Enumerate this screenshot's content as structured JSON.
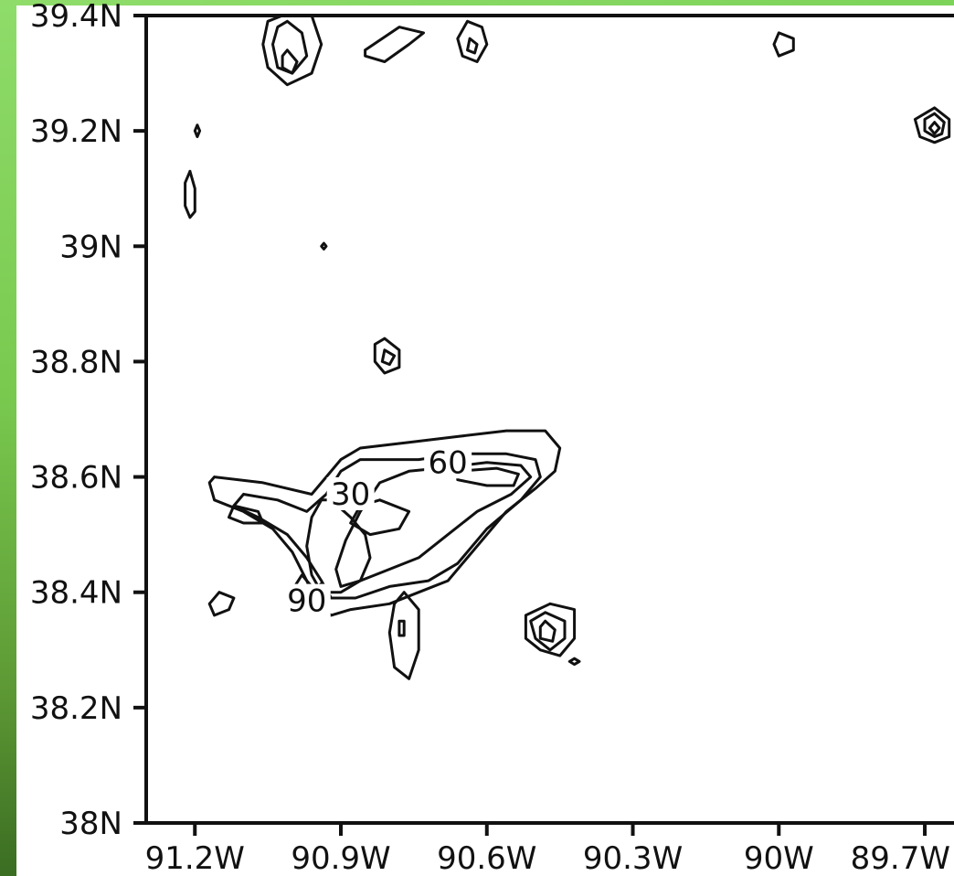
{
  "chart_data": {
    "type": "contour",
    "title": "",
    "xlabel": "",
    "ylabel": "",
    "xlim": [
      -91.3,
      -89.64
    ],
    "ylim": [
      38.0,
      39.4
    ],
    "x_ticks": [
      {
        "value": -91.2,
        "label": "91.2W"
      },
      {
        "value": -90.9,
        "label": "90.9W"
      },
      {
        "value": -90.6,
        "label": "90.6W"
      },
      {
        "value": -90.3,
        "label": "90.3W"
      },
      {
        "value": -90.0,
        "label": "90W"
      },
      {
        "value": -89.7,
        "label": "89.7W"
      }
    ],
    "y_ticks": [
      {
        "value": 39.4,
        "label": "39.4N"
      },
      {
        "value": 39.2,
        "label": "39.2N"
      },
      {
        "value": 39.0,
        "label": "39N"
      },
      {
        "value": 38.8,
        "label": "38.8N"
      },
      {
        "value": 38.6,
        "label": "38.6N"
      },
      {
        "value": 38.4,
        "label": "38.4N"
      },
      {
        "value": 38.2,
        "label": "38.2N"
      },
      {
        "value": 38.0,
        "label": "38N"
      }
    ],
    "contour_labels": [
      {
        "text": "30",
        "x": -90.88,
        "y": 38.555
      },
      {
        "text": "60",
        "x": -90.68,
        "y": 38.61
      },
      {
        "text": "90",
        "x": -90.97,
        "y": 38.37
      }
    ],
    "contours": [
      {
        "name": "main-outer",
        "points": [
          [
            -91.16,
            38.6
          ],
          [
            -91.06,
            38.59
          ],
          [
            -90.96,
            38.57
          ],
          [
            -90.93,
            38.6
          ],
          [
            -90.9,
            38.63
          ],
          [
            -90.86,
            38.65
          ],
          [
            -90.76,
            38.66
          ],
          [
            -90.66,
            38.67
          ],
          [
            -90.56,
            38.68
          ],
          [
            -90.48,
            38.68
          ],
          [
            -90.45,
            38.65
          ],
          [
            -90.46,
            38.61
          ],
          [
            -90.5,
            38.58
          ],
          [
            -90.56,
            38.54
          ],
          [
            -90.62,
            38.48
          ],
          [
            -90.68,
            38.42
          ],
          [
            -90.74,
            38.4
          ],
          [
            -90.8,
            38.38
          ],
          [
            -90.88,
            38.37
          ],
          [
            -90.92,
            38.36
          ],
          [
            -90.95,
            38.38
          ],
          [
            -90.97,
            38.42
          ],
          [
            -91.0,
            38.47
          ],
          [
            -91.04,
            38.51
          ],
          [
            -91.1,
            38.54
          ],
          [
            -91.16,
            38.56
          ],
          [
            -91.17,
            38.59
          ],
          [
            -91.16,
            38.6
          ]
        ]
      },
      {
        "name": "main-mid",
        "points": [
          [
            -91.1,
            38.57
          ],
          [
            -91.03,
            38.56
          ],
          [
            -90.97,
            38.54
          ],
          [
            -90.93,
            38.57
          ],
          [
            -90.9,
            38.61
          ],
          [
            -90.86,
            38.63
          ],
          [
            -90.74,
            38.63
          ],
          [
            -90.66,
            38.64
          ],
          [
            -90.56,
            38.64
          ],
          [
            -90.5,
            38.63
          ],
          [
            -90.49,
            38.6
          ],
          [
            -90.53,
            38.56
          ],
          [
            -90.6,
            38.51
          ],
          [
            -90.66,
            38.45
          ],
          [
            -90.72,
            38.42
          ],
          [
            -90.8,
            38.41
          ],
          [
            -90.87,
            38.39
          ],
          [
            -90.92,
            38.39
          ],
          [
            -90.94,
            38.42
          ],
          [
            -90.97,
            38.46
          ],
          [
            -91.01,
            38.5
          ],
          [
            -91.07,
            38.53
          ],
          [
            -91.12,
            38.55
          ],
          [
            -91.1,
            38.57
          ]
        ]
      },
      {
        "name": "main-inner-ne",
        "points": [
          [
            -90.7,
            38.615
          ],
          [
            -90.6,
            38.625
          ],
          [
            -90.53,
            38.62
          ],
          [
            -90.51,
            38.6
          ],
          [
            -90.55,
            38.57
          ],
          [
            -90.62,
            38.54
          ],
          [
            -90.68,
            38.5
          ],
          [
            -90.74,
            38.46
          ],
          [
            -90.8,
            38.44
          ],
          [
            -90.86,
            38.42
          ],
          [
            -90.9,
            38.41
          ],
          [
            -90.91,
            38.44
          ],
          [
            -90.89,
            38.49
          ],
          [
            -90.86,
            38.54
          ],
          [
            -90.82,
            38.59
          ],
          [
            -90.76,
            38.61
          ],
          [
            -90.7,
            38.615
          ]
        ]
      },
      {
        "name": "main-60-cell",
        "points": [
          [
            -90.66,
            38.61
          ],
          [
            -90.58,
            38.615
          ],
          [
            -90.535,
            38.605
          ],
          [
            -90.545,
            38.585
          ],
          [
            -90.6,
            38.585
          ],
          [
            -90.66,
            38.595
          ],
          [
            -90.66,
            38.61
          ]
        ]
      },
      {
        "name": "main-inner-sw",
        "points": [
          [
            -90.92,
            38.56
          ],
          [
            -90.88,
            38.53
          ],
          [
            -90.85,
            38.5
          ],
          [
            -90.84,
            38.46
          ],
          [
            -90.86,
            38.42
          ],
          [
            -90.9,
            38.4
          ],
          [
            -90.94,
            38.4
          ],
          [
            -90.96,
            38.43
          ],
          [
            -90.97,
            38.48
          ],
          [
            -90.96,
            38.53
          ],
          [
            -90.94,
            38.56
          ],
          [
            -90.92,
            38.56
          ]
        ]
      },
      {
        "name": "main-inner-mid",
        "points": [
          [
            -90.82,
            38.56
          ],
          [
            -90.76,
            38.54
          ],
          [
            -90.78,
            38.51
          ],
          [
            -90.84,
            38.5
          ],
          [
            -90.88,
            38.52
          ],
          [
            -90.86,
            38.55
          ],
          [
            -90.82,
            38.56
          ]
        ]
      },
      {
        "name": "main-west-cell",
        "points": [
          [
            -91.12,
            38.55
          ],
          [
            -91.07,
            38.54
          ],
          [
            -91.06,
            38.52
          ],
          [
            -91.1,
            38.52
          ],
          [
            -91.13,
            38.53
          ],
          [
            -91.12,
            38.55
          ]
        ]
      },
      {
        "name": "main-90-core",
        "points": [
          [
            -91.01,
            38.39
          ],
          [
            -90.98,
            38.43
          ],
          [
            -90.96,
            38.41
          ],
          [
            -90.96,
            38.39
          ],
          [
            -91.01,
            38.39
          ]
        ]
      },
      {
        "name": "main-90-core-b",
        "points": [
          [
            -90.96,
            38.4
          ],
          [
            -90.94,
            38.415
          ],
          [
            -90.93,
            38.39
          ],
          [
            -90.96,
            38.4
          ]
        ]
      },
      {
        "name": "nw-outer",
        "points": [
          [
            -91.02,
            39.4
          ],
          [
            -90.96,
            39.4
          ],
          [
            -90.94,
            39.35
          ],
          [
            -90.96,
            39.3
          ],
          [
            -91.01,
            39.28
          ],
          [
            -91.05,
            39.31
          ],
          [
            -91.06,
            39.35
          ],
          [
            -91.05,
            39.39
          ],
          [
            -91.02,
            39.4
          ]
        ]
      },
      {
        "name": "nw-mid",
        "points": [
          [
            -91.01,
            39.39
          ],
          [
            -90.98,
            39.37
          ],
          [
            -90.97,
            39.33
          ],
          [
            -91.0,
            39.3
          ],
          [
            -91.03,
            39.31
          ],
          [
            -91.04,
            39.35
          ],
          [
            -91.03,
            39.38
          ],
          [
            -91.01,
            39.39
          ]
        ]
      },
      {
        "name": "nw-inner",
        "points": [
          [
            -91.01,
            39.34
          ],
          [
            -90.99,
            39.32
          ],
          [
            -91.0,
            39.3
          ],
          [
            -91.02,
            39.31
          ],
          [
            -91.02,
            39.33
          ],
          [
            -91.01,
            39.34
          ]
        ]
      },
      {
        "name": "nw-east",
        "points": [
          [
            -90.85,
            39.34
          ],
          [
            -90.78,
            39.38
          ],
          [
            -90.73,
            39.37
          ],
          [
            -90.76,
            39.35
          ],
          [
            -90.81,
            39.32
          ],
          [
            -90.85,
            39.33
          ],
          [
            -90.85,
            39.34
          ]
        ]
      },
      {
        "name": "nc-outer",
        "points": [
          [
            -90.64,
            39.39
          ],
          [
            -90.61,
            39.38
          ],
          [
            -90.6,
            39.35
          ],
          [
            -90.62,
            39.32
          ],
          [
            -90.65,
            39.33
          ],
          [
            -90.66,
            39.36
          ],
          [
            -90.64,
            39.39
          ]
        ]
      },
      {
        "name": "nc-inner",
        "points": [
          [
            -90.635,
            39.36
          ],
          [
            -90.62,
            39.35
          ],
          [
            -90.625,
            39.335
          ],
          [
            -90.64,
            39.34
          ],
          [
            -90.635,
            39.36
          ]
        ]
      },
      {
        "name": "ne-small",
        "points": [
          [
            -90.0,
            39.37
          ],
          [
            -89.97,
            39.36
          ],
          [
            -89.97,
            39.34
          ],
          [
            -90.0,
            39.33
          ],
          [
            -90.01,
            39.35
          ],
          [
            -90.0,
            39.37
          ]
        ]
      },
      {
        "name": "e-outer",
        "points": [
          [
            -89.68,
            39.24
          ],
          [
            -89.65,
            39.22
          ],
          [
            -89.65,
            39.19
          ],
          [
            -89.68,
            39.18
          ],
          [
            -89.71,
            39.19
          ],
          [
            -89.72,
            39.22
          ],
          [
            -89.68,
            39.24
          ]
        ]
      },
      {
        "name": "e-mid",
        "points": [
          [
            -89.68,
            39.23
          ],
          [
            -89.66,
            39.215
          ],
          [
            -89.665,
            39.195
          ],
          [
            -89.68,
            39.19
          ],
          [
            -89.7,
            39.2
          ],
          [
            -89.7,
            39.22
          ],
          [
            -89.68,
            39.23
          ]
        ]
      },
      {
        "name": "e-inner",
        "points": [
          [
            -89.68,
            39.215
          ],
          [
            -89.67,
            39.205
          ],
          [
            -89.68,
            39.195
          ],
          [
            -89.69,
            39.205
          ],
          [
            -89.68,
            39.215
          ]
        ]
      },
      {
        "name": "w-sliver",
        "points": [
          [
            -91.195,
            39.21
          ],
          [
            -91.19,
            39.2
          ],
          [
            -91.195,
            39.19
          ],
          [
            -91.2,
            39.2
          ],
          [
            -91.195,
            39.21
          ]
        ]
      },
      {
        "name": "w-oval",
        "points": [
          [
            -91.21,
            39.13
          ],
          [
            -91.2,
            39.1
          ],
          [
            -91.2,
            39.06
          ],
          [
            -91.21,
            39.05
          ],
          [
            -91.22,
            39.07
          ],
          [
            -91.22,
            39.11
          ],
          [
            -91.21,
            39.13
          ]
        ]
      },
      {
        "name": "dot-39n",
        "points": [
          [
            -90.935,
            39.005
          ],
          [
            -90.93,
            39.0
          ],
          [
            -90.935,
            38.995
          ],
          [
            -90.94,
            39.0
          ],
          [
            -90.935,
            39.005
          ]
        ]
      },
      {
        "name": "c-outer",
        "points": [
          [
            -90.81,
            38.84
          ],
          [
            -90.78,
            38.82
          ],
          [
            -90.78,
            38.79
          ],
          [
            -90.81,
            38.78
          ],
          [
            -90.83,
            38.8
          ],
          [
            -90.83,
            38.83
          ],
          [
            -90.81,
            38.84
          ]
        ]
      },
      {
        "name": "c-inner",
        "points": [
          [
            -90.81,
            38.82
          ],
          [
            -90.79,
            38.81
          ],
          [
            -90.8,
            38.795
          ],
          [
            -90.815,
            38.8
          ],
          [
            -90.81,
            38.82
          ]
        ]
      },
      {
        "name": "sw-oval",
        "points": [
          [
            -91.15,
            38.4
          ],
          [
            -91.12,
            38.39
          ],
          [
            -91.13,
            38.37
          ],
          [
            -91.16,
            38.36
          ],
          [
            -91.17,
            38.38
          ],
          [
            -91.15,
            38.4
          ]
        ]
      },
      {
        "name": "s-oval",
        "points": [
          [
            -90.77,
            38.4
          ],
          [
            -90.74,
            38.37
          ],
          [
            -90.74,
            38.3
          ],
          [
            -90.76,
            38.25
          ],
          [
            -90.79,
            38.27
          ],
          [
            -90.8,
            38.33
          ],
          [
            -90.79,
            38.38
          ],
          [
            -90.77,
            38.4
          ]
        ]
      },
      {
        "name": "s-inner",
        "points": [
          [
            -90.78,
            38.35
          ],
          [
            -90.77,
            38.35
          ],
          [
            -90.77,
            38.325
          ],
          [
            -90.78,
            38.325
          ],
          [
            -90.78,
            38.35
          ]
        ]
      },
      {
        "name": "se-outer",
        "points": [
          [
            -90.47,
            38.38
          ],
          [
            -90.42,
            38.37
          ],
          [
            -90.42,
            38.32
          ],
          [
            -90.45,
            38.29
          ],
          [
            -90.49,
            38.3
          ],
          [
            -90.52,
            38.32
          ],
          [
            -90.52,
            38.36
          ],
          [
            -90.47,
            38.38
          ]
        ]
      },
      {
        "name": "se-mid",
        "points": [
          [
            -90.48,
            38.365
          ],
          [
            -90.44,
            38.35
          ],
          [
            -90.44,
            38.32
          ],
          [
            -90.47,
            38.3
          ],
          [
            -90.5,
            38.32
          ],
          [
            -90.51,
            38.35
          ],
          [
            -90.48,
            38.365
          ]
        ]
      },
      {
        "name": "se-inner",
        "points": [
          [
            -90.48,
            38.35
          ],
          [
            -90.46,
            38.335
          ],
          [
            -90.465,
            38.315
          ],
          [
            -90.49,
            38.32
          ],
          [
            -90.49,
            38.34
          ],
          [
            -90.48,
            38.35
          ]
        ]
      },
      {
        "name": "se-tiny",
        "points": [
          [
            -90.42,
            38.285
          ],
          [
            -90.41,
            38.28
          ],
          [
            -90.42,
            38.275
          ],
          [
            -90.43,
            38.28
          ],
          [
            -90.42,
            38.285
          ]
        ]
      }
    ]
  }
}
